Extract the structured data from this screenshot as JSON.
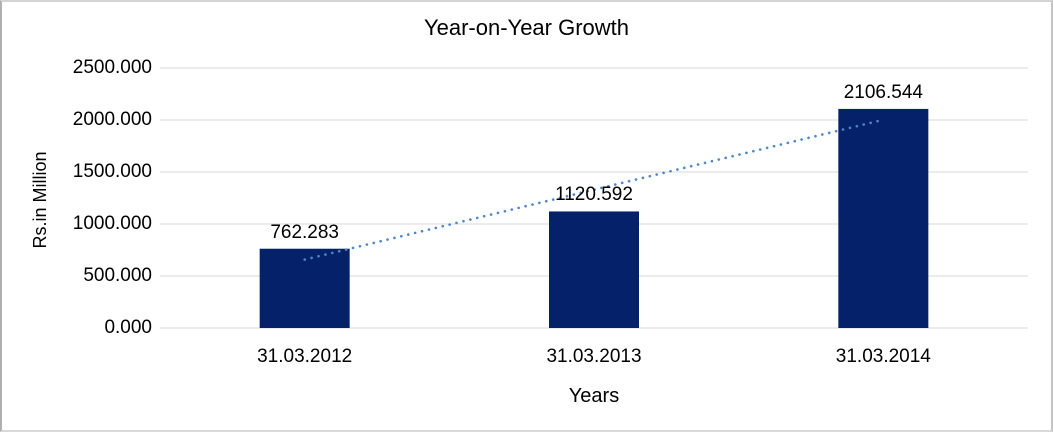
{
  "chart_data": {
    "type": "bar",
    "title": "Year-on-Year Growth",
    "xlabel": "Years",
    "ylabel": "Rs.in Million",
    "categories": [
      "31.03.2012",
      "31.03.2013",
      "31.03.2014"
    ],
    "values": [
      762.283,
      1120.592,
      2106.544
    ],
    "data_labels": [
      "762.283",
      "1120.592",
      "2106.544"
    ],
    "y_tick_labels": [
      "0.000",
      "500.000",
      "1000.000",
      "1500.000",
      "2000.000",
      "2500.000"
    ],
    "ylim": [
      0,
      2500
    ],
    "y_tick_step": 500,
    "grid": true,
    "legend": "none",
    "trendline": {
      "type": "linear",
      "style": "dotted",
      "color": "#4E86C8"
    },
    "colors": {
      "bar": "#04216A",
      "gridline": "#D9D9D9",
      "text": "#000000",
      "background": "#FFFFFF",
      "border": "#C4C4C4"
    }
  }
}
